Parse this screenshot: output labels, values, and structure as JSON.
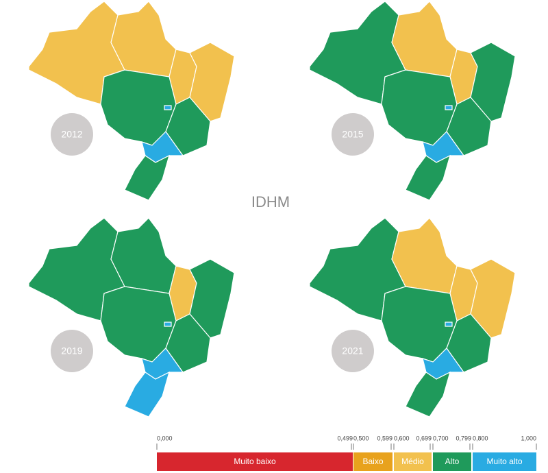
{
  "title": "IDHM",
  "maps": [
    {
      "year": "2012",
      "colors": [
        "#f2c14e",
        "#f2c14e",
        "#f2c14e",
        "#f2c14e",
        "#1f9a5b",
        "#1f9a5b",
        "#29abe2",
        "#1f9a5b",
        "#29abe2"
      ]
    },
    {
      "year": "2015",
      "colors": [
        "#1f9a5b",
        "#f2c14e",
        "#f2c14e",
        "#1f9a5b",
        "#1f9a5b",
        "#1f9a5b",
        "#29abe2",
        "#1f9a5b",
        "#29abe2"
      ]
    },
    {
      "year": "2019",
      "colors": [
        "#1f9a5b",
        "#1f9a5b",
        "#f2c14e",
        "#1f9a5b",
        "#1f9a5b",
        "#1f9a5b",
        "#29abe2",
        "#29abe2",
        "#29abe2"
      ]
    },
    {
      "year": "2021",
      "colors": [
        "#1f9a5b",
        "#f2c14e",
        "#f2c14e",
        "#f2c14e",
        "#1f9a5b",
        "#1f9a5b",
        "#29abe2",
        "#1f9a5b",
        "#29abe2"
      ]
    }
  ],
  "legend": {
    "ticks": [
      {
        "value": 0,
        "label": "0,000"
      },
      {
        "value": 0.499,
        "label": "0,499"
      },
      {
        "value": 0.5,
        "label": "0,500"
      },
      {
        "value": 0.599,
        "label": "0,599"
      },
      {
        "value": 0.6,
        "label": "0,600"
      },
      {
        "value": 0.699,
        "label": "0,699"
      },
      {
        "value": 0.7,
        "label": "0,700"
      },
      {
        "value": 0.799,
        "label": "0,799"
      },
      {
        "value": 0.8,
        "label": "0,800"
      },
      {
        "value": 1,
        "label": "1,000"
      }
    ],
    "classes": [
      {
        "name": "Muito baixo",
        "color": "#d7262e"
      },
      {
        "name": "Baixo",
        "color": "#e8a21d"
      },
      {
        "name": "Médio",
        "color": "#f2c14e"
      },
      {
        "name": "Alto",
        "color": "#1f9a5b"
      },
      {
        "name": "Muito alto",
        "color": "#29abe2"
      }
    ]
  }
}
